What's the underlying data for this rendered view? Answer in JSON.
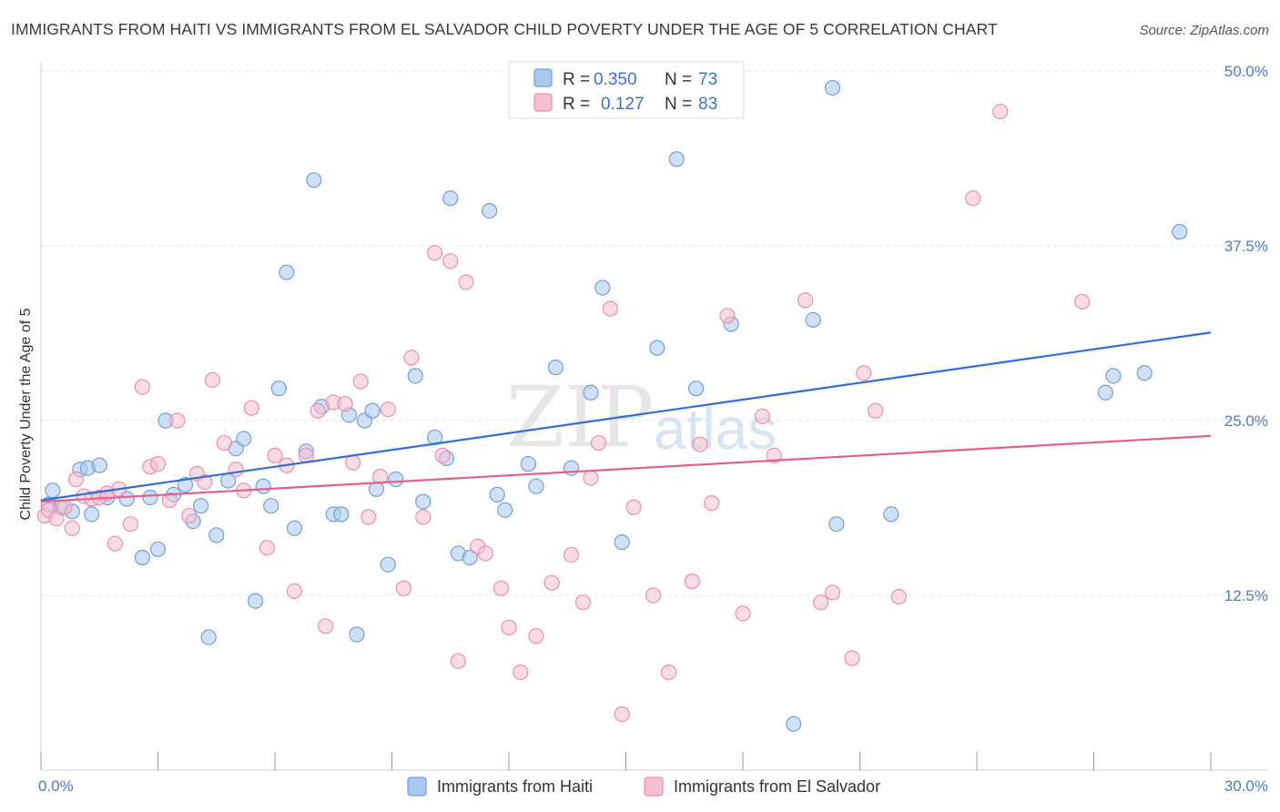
{
  "title": "IMMIGRANTS FROM HAITI VS IMMIGRANTS FROM EL SALVADOR CHILD POVERTY UNDER THE AGE OF 5 CORRELATION CHART",
  "source": "Source: ZipAtlas.com",
  "watermark": {
    "zip": "ZIP",
    "atlas": "atlas"
  },
  "colors": {
    "haiti_fill": "#aac8ee",
    "haiti_stroke": "#6f9fdc",
    "haiti_line": "#2f6fd0",
    "els_fill": "#f6bfd0",
    "els_stroke": "#ea8fae",
    "els_line": "#e0608f",
    "grid": "#e2e2e2",
    "tick_text": "#4a7cc7"
  },
  "legend": {
    "r_label": "R =",
    "n_label": "N =",
    "haiti": {
      "r": "0.350",
      "n": "73"
    },
    "els": {
      "r": "0.127",
      "n": "83"
    }
  },
  "chart_data": {
    "type": "scatter",
    "title": "IMMIGRANTS FROM HAITI VS IMMIGRANTS FROM EL SALVADOR CHILD POVERTY UNDER THE AGE OF 5 CORRELATION CHART",
    "xlabel": "",
    "ylabel": "Child Poverty Under the Age of 5",
    "xlim": [
      0,
      30
    ],
    "ylim": [
      0,
      50
    ],
    "x_tick_labels": [
      "0.0%",
      "30.0%"
    ],
    "y_ticks": [
      12.5,
      25.0,
      37.5,
      50.0
    ],
    "y_tick_labels": [
      "12.5%",
      "25.0%",
      "37.5%",
      "50.0%"
    ],
    "grid": true,
    "legend_position": "top-center",
    "series": [
      {
        "name": "Immigrants from Haiti",
        "trend": {
          "x": [
            0,
            30
          ],
          "y": [
            19.3,
            31.3
          ]
        },
        "points": [
          [
            0.2,
            19.0
          ],
          [
            0.3,
            20.0
          ],
          [
            0.5,
            18.8
          ],
          [
            0.8,
            18.5
          ],
          [
            1.0,
            21.5
          ],
          [
            1.2,
            21.6
          ],
          [
            1.3,
            18.3
          ],
          [
            1.5,
            21.8
          ],
          [
            1.7,
            19.5
          ],
          [
            2.2,
            19.4
          ],
          [
            2.6,
            15.2
          ],
          [
            2.8,
            19.5
          ],
          [
            3.0,
            15.8
          ],
          [
            3.2,
            25.0
          ],
          [
            3.4,
            19.7
          ],
          [
            3.7,
            20.4
          ],
          [
            3.9,
            17.8
          ],
          [
            4.1,
            18.9
          ],
          [
            4.3,
            9.5
          ],
          [
            4.5,
            16.8
          ],
          [
            4.8,
            20.7
          ],
          [
            5.0,
            23.0
          ],
          [
            5.2,
            23.7
          ],
          [
            5.5,
            12.1
          ],
          [
            5.7,
            20.3
          ],
          [
            5.9,
            18.9
          ],
          [
            6.1,
            27.3
          ],
          [
            6.3,
            35.6
          ],
          [
            6.5,
            17.3
          ],
          [
            6.8,
            22.8
          ],
          [
            7.0,
            42.2
          ],
          [
            7.2,
            26.0
          ],
          [
            7.5,
            18.3
          ],
          [
            7.7,
            18.3
          ],
          [
            7.9,
            25.4
          ],
          [
            8.1,
            9.7
          ],
          [
            8.3,
            25.0
          ],
          [
            8.5,
            25.7
          ],
          [
            8.6,
            20.1
          ],
          [
            8.9,
            14.7
          ],
          [
            9.1,
            20.8
          ],
          [
            9.6,
            28.2
          ],
          [
            9.8,
            19.2
          ],
          [
            10.1,
            23.8
          ],
          [
            10.4,
            22.3
          ],
          [
            10.5,
            40.9
          ],
          [
            10.7,
            15.5
          ],
          [
            11.0,
            15.2
          ],
          [
            11.5,
            40.0
          ],
          [
            11.7,
            19.7
          ],
          [
            11.9,
            18.6
          ],
          [
            12.5,
            21.9
          ],
          [
            12.7,
            20.3
          ],
          [
            13.2,
            28.8
          ],
          [
            13.6,
            21.6
          ],
          [
            14.1,
            27.0
          ],
          [
            14.4,
            34.5
          ],
          [
            14.9,
            16.3
          ],
          [
            15.8,
            30.2
          ],
          [
            16.3,
            43.7
          ],
          [
            16.8,
            27.3
          ],
          [
            17.7,
            31.9
          ],
          [
            19.3,
            3.3
          ],
          [
            19.8,
            32.2
          ],
          [
            20.3,
            48.8
          ],
          [
            20.4,
            17.6
          ],
          [
            21.8,
            18.3
          ],
          [
            27.3,
            27.0
          ],
          [
            27.5,
            28.2
          ],
          [
            28.3,
            28.4
          ],
          [
            29.2,
            38.5
          ]
        ]
      },
      {
        "name": "Immigrants from El Salvador",
        "trend": {
          "x": [
            0,
            30
          ],
          "y": [
            19.2,
            23.9
          ]
        },
        "points": [
          [
            0.1,
            18.2
          ],
          [
            0.2,
            18.6
          ],
          [
            0.4,
            18.0
          ],
          [
            0.6,
            18.8
          ],
          [
            0.8,
            17.3
          ],
          [
            0.9,
            20.8
          ],
          [
            1.1,
            19.6
          ],
          [
            1.3,
            19.4
          ],
          [
            1.5,
            19.5
          ],
          [
            1.7,
            19.8
          ],
          [
            1.9,
            16.2
          ],
          [
            2.0,
            20.1
          ],
          [
            2.3,
            17.6
          ],
          [
            2.6,
            27.4
          ],
          [
            2.8,
            21.7
          ],
          [
            3.0,
            21.9
          ],
          [
            3.3,
            19.3
          ],
          [
            3.5,
            25.0
          ],
          [
            3.8,
            18.2
          ],
          [
            4.0,
            21.2
          ],
          [
            4.2,
            20.6
          ],
          [
            4.4,
            27.9
          ],
          [
            4.7,
            23.4
          ],
          [
            5.0,
            21.5
          ],
          [
            5.2,
            20.0
          ],
          [
            5.4,
            25.9
          ],
          [
            5.8,
            15.9
          ],
          [
            6.0,
            22.5
          ],
          [
            6.3,
            21.8
          ],
          [
            6.5,
            12.8
          ],
          [
            6.8,
            22.5
          ],
          [
            7.1,
            25.7
          ],
          [
            7.3,
            10.3
          ],
          [
            7.5,
            26.3
          ],
          [
            7.8,
            26.2
          ],
          [
            8.0,
            22.0
          ],
          [
            8.2,
            27.8
          ],
          [
            8.4,
            18.1
          ],
          [
            8.7,
            21.0
          ],
          [
            8.9,
            25.8
          ],
          [
            9.3,
            13.0
          ],
          [
            9.5,
            29.5
          ],
          [
            9.8,
            18.1
          ],
          [
            10.1,
            37.0
          ],
          [
            10.3,
            22.5
          ],
          [
            10.5,
            36.4
          ],
          [
            10.7,
            7.8
          ],
          [
            10.9,
            34.9
          ],
          [
            11.2,
            16.0
          ],
          [
            11.4,
            15.5
          ],
          [
            11.8,
            13.0
          ],
          [
            12.0,
            10.2
          ],
          [
            12.3,
            7.0
          ],
          [
            12.7,
            9.6
          ],
          [
            13.1,
            13.4
          ],
          [
            13.6,
            15.4
          ],
          [
            13.9,
            12.0
          ],
          [
            14.1,
            20.9
          ],
          [
            14.3,
            23.4
          ],
          [
            14.6,
            33.0
          ],
          [
            14.9,
            4.0
          ],
          [
            15.2,
            18.8
          ],
          [
            15.7,
            12.5
          ],
          [
            16.1,
            7.0
          ],
          [
            16.7,
            13.5
          ],
          [
            16.9,
            23.3
          ],
          [
            17.2,
            19.1
          ],
          [
            17.6,
            32.5
          ],
          [
            18.0,
            11.2
          ],
          [
            18.5,
            25.3
          ],
          [
            18.8,
            22.5
          ],
          [
            19.6,
            33.6
          ],
          [
            20.0,
            12.0
          ],
          [
            20.3,
            12.7
          ],
          [
            20.8,
            8.0
          ],
          [
            21.1,
            28.4
          ],
          [
            21.4,
            25.7
          ],
          [
            22.0,
            12.4
          ],
          [
            23.9,
            40.9
          ],
          [
            24.6,
            47.1
          ],
          [
            26.7,
            33.5
          ]
        ]
      }
    ]
  },
  "bottom_legend": {
    "haiti": "Immigrants from Haiti",
    "els": "Immigrants from El Salvador"
  }
}
